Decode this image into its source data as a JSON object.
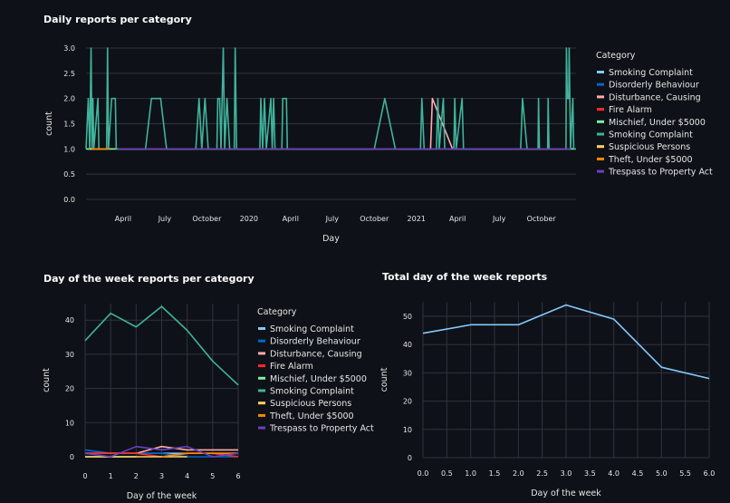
{
  "chart_data": [
    {
      "type": "line",
      "title": "Daily reports per category",
      "xlabel": "Day",
      "ylabel": "count",
      "ylim": [
        0,
        3
      ],
      "yticks": [
        0,
        0.5,
        1,
        1.5,
        2,
        2.5,
        3
      ],
      "ytick_labels": [
        "0.0",
        "0.5",
        "1.0",
        "1.5",
        "2.0",
        "2.5",
        "3.0"
      ],
      "xlim": [
        "2019-01-10",
        "2021-12-16"
      ],
      "xticks": [
        {
          "date": "2019-04-01",
          "label": "April"
        },
        {
          "date": "2019-07-01",
          "label": "July"
        },
        {
          "date": "2019-10-01",
          "label": "October"
        },
        {
          "date": "2020-01-01",
          "label": "2020"
        },
        {
          "date": "2020-04-01",
          "label": "April"
        },
        {
          "date": "2020-07-01",
          "label": "July"
        },
        {
          "date": "2020-10-01",
          "label": "October"
        },
        {
          "date": "2021-01-01",
          "label": "2021"
        },
        {
          "date": "2021-04-01",
          "label": "April"
        },
        {
          "date": "2021-07-01",
          "label": "July"
        },
        {
          "date": "2021-10-01",
          "label": "October"
        }
      ],
      "grid": true,
      "legend": {
        "title": "Category",
        "position": "right"
      },
      "series": [
        {
          "name": "Smoking Complaint",
          "color": "#83c9ff",
          "points": [
            [
              "2019-01-10",
              1
            ],
            [
              "2019-01-25",
              1
            ]
          ]
        },
        {
          "name": "Disorderly Behaviour",
          "color": "#0068c9",
          "points": [
            [
              "2019-01-12",
              1
            ],
            [
              "2019-02-20",
              1
            ]
          ]
        },
        {
          "name": "Disturbance, Causing",
          "color": "#ffabab",
          "points": [
            [
              "2019-01-14",
              1
            ],
            [
              "2021-02-01",
              1
            ],
            [
              "2021-02-05",
              2
            ],
            [
              "2021-03-21",
              1
            ],
            [
              "2021-12-16",
              1
            ]
          ]
        },
        {
          "name": "Fire Alarm",
          "color": "#ff2b2b",
          "points": [
            [
              "2019-01-20",
              1
            ],
            [
              "2019-03-15",
              1
            ]
          ]
        },
        {
          "name": "Mischief, Under $5000",
          "color": "#7defa1",
          "points": [
            [
              "2019-01-10",
              1
            ],
            [
              "2019-04-10",
              1
            ],
            [
              "2021-12-05",
              1
            ],
            [
              "2021-12-16",
              1
            ]
          ]
        },
        {
          "name": "Smoking Complaint",
          "color": "#3fb39b",
          "points": [
            [
              "2019-01-10",
              1
            ],
            [
              "2019-01-15",
              2
            ],
            [
              "2019-01-18",
              1
            ],
            [
              "2019-01-21",
              3
            ],
            [
              "2019-01-23",
              1
            ],
            [
              "2019-01-25",
              2
            ],
            [
              "2019-01-27",
              1
            ],
            [
              "2019-02-05",
              2
            ],
            [
              "2019-02-07",
              1
            ],
            [
              "2019-02-24",
              1
            ],
            [
              "2019-02-26",
              3
            ],
            [
              "2019-02-28",
              1
            ],
            [
              "2019-03-07",
              2
            ],
            [
              "2019-03-15",
              2
            ],
            [
              "2019-03-17",
              1
            ],
            [
              "2019-05-20",
              1
            ],
            [
              "2019-06-02",
              2
            ],
            [
              "2019-06-22",
              2
            ],
            [
              "2019-07-05",
              1
            ],
            [
              "2019-09-07",
              1
            ],
            [
              "2019-09-14",
              2
            ],
            [
              "2019-09-20",
              1
            ],
            [
              "2019-09-27",
              2
            ],
            [
              "2019-10-04",
              1
            ],
            [
              "2019-10-23",
              1
            ],
            [
              "2019-10-25",
              2
            ],
            [
              "2019-10-29",
              2
            ],
            [
              "2019-11-01",
              1
            ],
            [
              "2019-11-06",
              3
            ],
            [
              "2019-11-09",
              1
            ],
            [
              "2019-11-14",
              2
            ],
            [
              "2019-11-20",
              1
            ],
            [
              "2019-11-30",
              1
            ],
            [
              "2019-12-02",
              3
            ],
            [
              "2019-12-05",
              1
            ],
            [
              "2020-01-25",
              1
            ],
            [
              "2020-01-27",
              2
            ],
            [
              "2020-01-31",
              1
            ],
            [
              "2020-02-04",
              2
            ],
            [
              "2020-02-08",
              1
            ],
            [
              "2020-02-18",
              2
            ],
            [
              "2020-02-21",
              1
            ],
            [
              "2020-02-24",
              2
            ],
            [
              "2020-02-27",
              1
            ],
            [
              "2020-03-13",
              1
            ],
            [
              "2020-03-15",
              2
            ],
            [
              "2020-03-23",
              2
            ],
            [
              "2020-03-25",
              1
            ],
            [
              "2020-10-01",
              1
            ],
            [
              "2020-10-24",
              2
            ],
            [
              "2020-11-16",
              1
            ],
            [
              "2021-01-10",
              1
            ],
            [
              "2021-01-13",
              2
            ],
            [
              "2021-01-18",
              1
            ],
            [
              "2021-02-14",
              1
            ],
            [
              "2021-02-17",
              2
            ],
            [
              "2021-02-20",
              1
            ],
            [
              "2021-03-01",
              2
            ],
            [
              "2021-03-04",
              1
            ],
            [
              "2021-03-24",
              1
            ],
            [
              "2021-03-26",
              2
            ],
            [
              "2021-03-29",
              1
            ],
            [
              "2021-04-11",
              2
            ],
            [
              "2021-04-14",
              1
            ],
            [
              "2021-08-17",
              1
            ],
            [
              "2021-08-21",
              2
            ],
            [
              "2021-08-31",
              1
            ],
            [
              "2021-09-24",
              1
            ],
            [
              "2021-09-25",
              2
            ],
            [
              "2021-09-27",
              1
            ],
            [
              "2021-10-15",
              1
            ],
            [
              "2021-10-16",
              2
            ],
            [
              "2021-10-18",
              1
            ],
            [
              "2021-11-24",
              1
            ],
            [
              "2021-11-25",
              3
            ],
            [
              "2021-11-27",
              2
            ],
            [
              "2021-11-30",
              2
            ],
            [
              "2021-12-01",
              3
            ],
            [
              "2021-12-04",
              1
            ],
            [
              "2021-12-09",
              2
            ],
            [
              "2021-12-11",
              1
            ],
            [
              "2021-12-16",
              1
            ]
          ]
        },
        {
          "name": "Suspicious Persons",
          "color": "#ffd16a",
          "points": [
            [
              "2019-01-18",
              1
            ],
            [
              "2019-02-10",
              1
            ]
          ]
        },
        {
          "name": "Theft, Under $5000",
          "color": "#ff8700",
          "points": [
            [
              "2019-01-22",
              1
            ],
            [
              "2019-03-01",
              1
            ]
          ]
        },
        {
          "name": "Trespass to Property Act",
          "color": "#6d3fc0",
          "points": [
            [
              "2019-03-20",
              1
            ],
            [
              "2021-12-05",
              1
            ]
          ]
        }
      ]
    },
    {
      "type": "line",
      "title": "Day of the week reports per category",
      "xlabel": "Day of the week",
      "ylabel": "count",
      "xlim": [
        0,
        6
      ],
      "ylim": [
        0,
        45
      ],
      "xticks": [
        0,
        1,
        2,
        3,
        4,
        5,
        6
      ],
      "xtick_labels": [
        "0",
        "1",
        "2",
        "3",
        "4",
        "5",
        "6"
      ],
      "yticks": [
        0,
        10,
        20,
        30,
        40
      ],
      "ytick_labels": [
        "0",
        "10",
        "20",
        "30",
        "40"
      ],
      "grid": true,
      "legend": {
        "title": "Category",
        "position": "right"
      },
      "x": [
        0,
        1,
        2,
        3,
        4,
        5,
        6
      ],
      "series": [
        {
          "name": "Smoking Complaint",
          "color": "#83c9ff",
          "values": [
            1,
            1,
            1,
            1,
            1,
            1,
            1
          ]
        },
        {
          "name": "Disorderly Behaviour",
          "color": "#0068c9",
          "values": [
            2,
            1,
            1,
            1,
            0,
            0,
            0
          ]
        },
        {
          "name": "Disturbance, Causing",
          "color": "#ffabab",
          "values": [
            1,
            1,
            1,
            3,
            2,
            2,
            2
          ]
        },
        {
          "name": "Fire Alarm",
          "color": "#ff2b2b",
          "values": [
            1,
            1,
            1,
            0,
            1,
            1,
            0
          ]
        },
        {
          "name": "Mischief, Under $5000",
          "color": "#7defa1",
          "values": [
            0,
            0,
            0,
            null,
            null,
            null,
            null
          ]
        },
        {
          "name": "Smoking Complaint",
          "color": "#3fb39b",
          "values": [
            34,
            42,
            38,
            44,
            37,
            28,
            21
          ]
        },
        {
          "name": "Suspicious Persons",
          "color": "#ffd16a",
          "values": [
            0,
            0,
            0,
            0,
            0,
            null,
            null
          ]
        },
        {
          "name": "Theft, Under $5000",
          "color": "#ff8700",
          "values": [
            null,
            null,
            null,
            0,
            1,
            1,
            1
          ]
        },
        {
          "name": "Trespass to Property Act",
          "color": "#6d3fc0",
          "values": [
            1,
            0,
            3,
            2,
            3,
            0,
            1
          ]
        }
      ]
    },
    {
      "type": "line",
      "title": "Total day of the week reports",
      "xlabel": "Day of the week",
      "ylabel": "count",
      "xlim": [
        0,
        6
      ],
      "ylim": [
        0,
        55
      ],
      "xticks": [
        0,
        0.5,
        1,
        1.5,
        2,
        2.5,
        3,
        3.5,
        4,
        4.5,
        5,
        5.5,
        6
      ],
      "xtick_labels": [
        "0.0",
        "0.5",
        "1.0",
        "1.5",
        "2.0",
        "2.5",
        "3.0",
        "3.5",
        "4.0",
        "4.5",
        "5.0",
        "5.5",
        "6.0"
      ],
      "yticks": [
        0,
        10,
        20,
        30,
        40,
        50
      ],
      "ytick_labels": [
        "0",
        "10",
        "20",
        "30",
        "40",
        "50"
      ],
      "grid": true,
      "x": [
        0,
        1,
        2,
        3,
        4,
        5,
        6
      ],
      "series": [
        {
          "color": "#83c9ff",
          "values": [
            44,
            47,
            47,
            54,
            49,
            32,
            28
          ]
        }
      ]
    }
  ]
}
